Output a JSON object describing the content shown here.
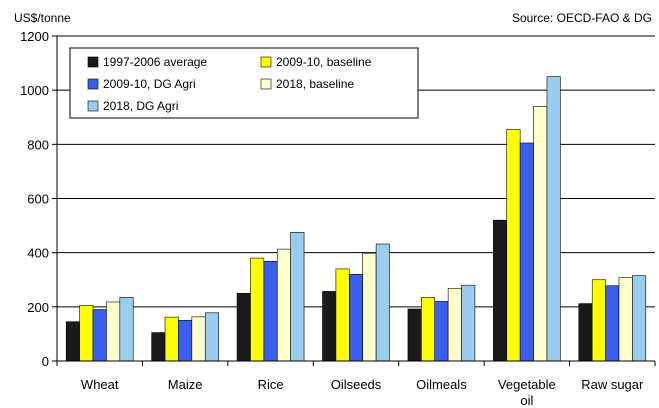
{
  "chart_data": {
    "type": "bar",
    "ylabel": "US$/tonne",
    "source": "Source: OECD-FAO & DG",
    "ylim": [
      0,
      1200
    ],
    "yticks": [
      0,
      200,
      400,
      600,
      800,
      1000,
      1200
    ],
    "grid": true,
    "legend_position": "top-left",
    "categories": [
      "Wheat",
      "Maize",
      "Rice",
      "Oilseeds",
      "Oilmeals",
      "Vegetable oil",
      "Raw sugar"
    ],
    "category_lines": [
      [
        "Wheat"
      ],
      [
        "Maize"
      ],
      [
        "Rice"
      ],
      [
        "Oilseeds"
      ],
      [
        "Oilmeals"
      ],
      [
        "Vegetable",
        "oil"
      ],
      [
        "Raw sugar"
      ]
    ],
    "series": [
      {
        "name": "1997-2006 average",
        "color": "#1a1a1a",
        "values": [
          145,
          105,
          250,
          257,
          192,
          520,
          212
        ]
      },
      {
        "name": "2009-10, baseline",
        "color": "#ffff00",
        "values": [
          205,
          162,
          380,
          340,
          235,
          855,
          300
        ]
      },
      {
        "name": "2009-10, DG Agri",
        "color": "#3a5ff0",
        "values": [
          190,
          150,
          368,
          320,
          220,
          805,
          278
        ]
      },
      {
        "name": "2018, baseline",
        "color": "#ffffcc",
        "values": [
          218,
          163,
          413,
          398,
          268,
          940,
          308
        ]
      },
      {
        "name": "2018, DG Agri",
        "color": "#99ccee",
        "values": [
          235,
          178,
          475,
          432,
          280,
          1050,
          315
        ]
      }
    ]
  }
}
